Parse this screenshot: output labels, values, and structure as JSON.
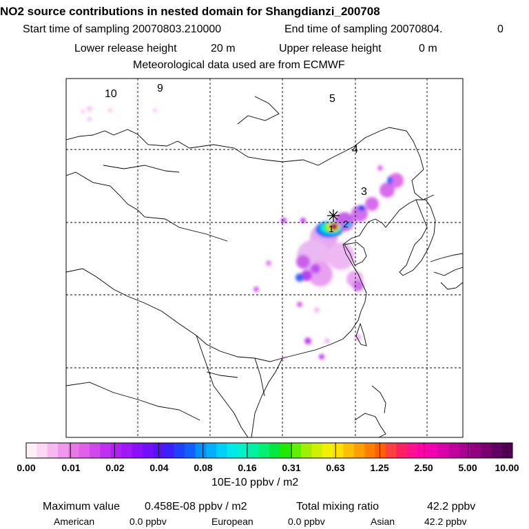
{
  "header": {
    "title": "NO2 source contributions in nested domain for Shangdianzi_200708",
    "start_label": "Start time of sampling 20070803.210000",
    "end_label": "End time of sampling 20070804.",
    "end_value": "0",
    "lower_label": "Lower release height",
    "lower_value": "20 m",
    "upper_label": "Upper release height",
    "upper_value": "0 m",
    "met": "Meteorological data used are from ECMWF"
  },
  "map": {
    "region_labels": [
      "10",
      "9",
      "5",
      "4",
      "3",
      "2",
      "1"
    ],
    "station_marker": "star-icon"
  },
  "colorbar": {
    "ticks": [
      "0.00",
      "0.01",
      "0.02",
      "0.04",
      "0.08",
      "0.16",
      "0.31",
      "0.63",
      "1.25",
      "2.50",
      "5.00",
      "10.00"
    ],
    "colors": [
      "#fff0f8",
      "#fbd8f4",
      "#f7b8f0",
      "#f098ec",
      "#e878e8",
      "#e060e8",
      "#d048ec",
      "#c030f0",
      "#b020f4",
      "#a018f8",
      "#8810fa",
      "#7010fc",
      "#5810ff",
      "#3c20ff",
      "#2040ff",
      "#1060ff",
      "#0090ff",
      "#00b0ff",
      "#00d0f8",
      "#00e8e8",
      "#00f0c8",
      "#00f0a0",
      "#00f070",
      "#00e840",
      "#20e800",
      "#60f000",
      "#a0f000",
      "#d0f000",
      "#f0f000",
      "#ffe000",
      "#ffc000",
      "#ffa000",
      "#ff8000",
      "#ff6000",
      "#ff4040",
      "#ff2060",
      "#ff1090",
      "#ff00a8",
      "#f000b0",
      "#d800a8",
      "#c0009c",
      "#a80090",
      "#900080",
      "#780070",
      "#600060",
      "#500050"
    ],
    "unit": "10E-10 ppbv / m2"
  },
  "footer": {
    "max_label": "Maximum value",
    "max_value": "0.458E-08 ppbv / m2",
    "total_label": "Total mixing ratio",
    "total_value": "42.2 ppbv",
    "american_label": "American",
    "american_value": "0.0 ppbv",
    "european_label": "European",
    "european_value": "0.0 ppbv",
    "asian_label": "Asian",
    "asian_value": "42.2 ppbv"
  }
}
